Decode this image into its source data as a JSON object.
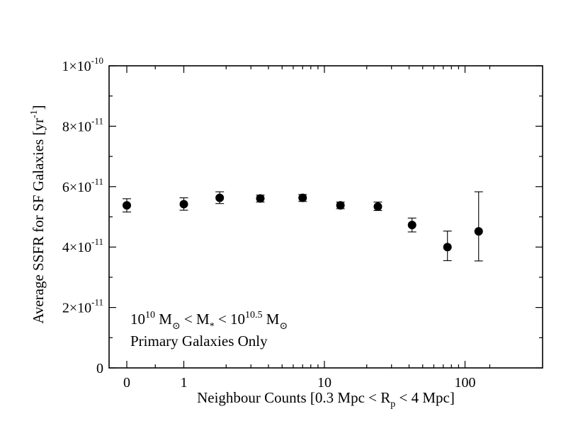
{
  "chart_data": {
    "type": "scatter",
    "xscale": "log(1+x)",
    "ylim": [
      0,
      1e-10
    ],
    "xlabel": {
      "pre": "Neighbour Counts [0.3 Mpc < R",
      "sub": "p",
      "post": " < 4 Mpc]"
    },
    "ylabel": {
      "pre": "Average SSFR for SF Galaxies [yr",
      "sup": "-1",
      "post": "]"
    },
    "x_ticks": [
      {
        "value": 0,
        "label": "0"
      },
      {
        "value": 1,
        "label": "1"
      },
      {
        "value": 10,
        "label": "10"
      },
      {
        "value": 100,
        "label": "100"
      }
    ],
    "y_ticks": [
      {
        "value": 0,
        "mantissa": "0",
        "exp": ""
      },
      {
        "value": 2e-11,
        "mantissa": "2×10",
        "exp": "-11"
      },
      {
        "value": 4e-11,
        "mantissa": "4×10",
        "exp": "-11"
      },
      {
        "value": 6e-11,
        "mantissa": "6×10",
        "exp": "-11"
      },
      {
        "value": 8e-11,
        "mantissa": "8×10",
        "exp": "-11"
      },
      {
        "value": 1e-10,
        "mantissa": "1×10",
        "exp": "-10"
      }
    ],
    "annotation": {
      "line1": {
        "a": "10",
        "a_sup": "10",
        "b": " M",
        "b_sub": "⊙",
        "c": " < M",
        "c_sub": "*",
        "d": " < 10",
        "d_sup": "10.5",
        "e": " M",
        "e_sub": "⊙"
      },
      "line2": "Primary Galaxies Only"
    },
    "points": [
      {
        "x": 0,
        "y": 5.38e-11,
        "lo": 5.16e-11,
        "hi": 5.6e-11
      },
      {
        "x": 1,
        "y": 5.42e-11,
        "lo": 5.22e-11,
        "hi": 5.63e-11
      },
      {
        "x": 1.8,
        "y": 5.63e-11,
        "lo": 5.44e-11,
        "hi": 5.83e-11
      },
      {
        "x": 3.5,
        "y": 5.61e-11,
        "lo": 5.49e-11,
        "hi": 5.72e-11
      },
      {
        "x": 7,
        "y": 5.63e-11,
        "lo": 5.51e-11,
        "hi": 5.74e-11
      },
      {
        "x": 13,
        "y": 5.38e-11,
        "lo": 5.27e-11,
        "hi": 5.49e-11
      },
      {
        "x": 24,
        "y": 5.34e-11,
        "lo": 5.21e-11,
        "hi": 5.49e-11
      },
      {
        "x": 42,
        "y": 4.73e-11,
        "lo": 4.5e-11,
        "hi": 4.96e-11
      },
      {
        "x": 75,
        "y": 4e-11,
        "lo": 3.55e-11,
        "hi": 4.53e-11
      },
      {
        "x": 125,
        "y": 4.52e-11,
        "lo": 3.54e-11,
        "hi": 5.83e-11
      }
    ]
  }
}
